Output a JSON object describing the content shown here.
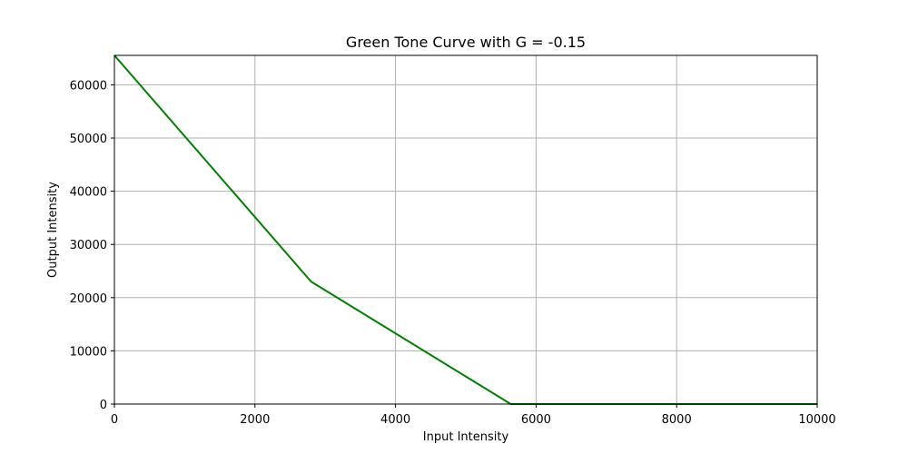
{
  "chart_data": {
    "type": "line",
    "title": "Green Tone Curve with G = -0.15",
    "xlabel": "Input Intensity",
    "ylabel": "Output Intensity",
    "xlim": [
      0,
      10000
    ],
    "ylim": [
      0,
      65535
    ],
    "xticks": [
      0,
      2000,
      4000,
      6000,
      8000,
      10000
    ],
    "yticks": [
      0,
      10000,
      20000,
      30000,
      40000,
      50000,
      60000
    ],
    "grid": true,
    "series": [
      {
        "color": "#008000",
        "x": [
          0,
          2800,
          5640,
          10000
        ],
        "y": [
          65535,
          23000,
          0,
          0
        ]
      }
    ]
  }
}
